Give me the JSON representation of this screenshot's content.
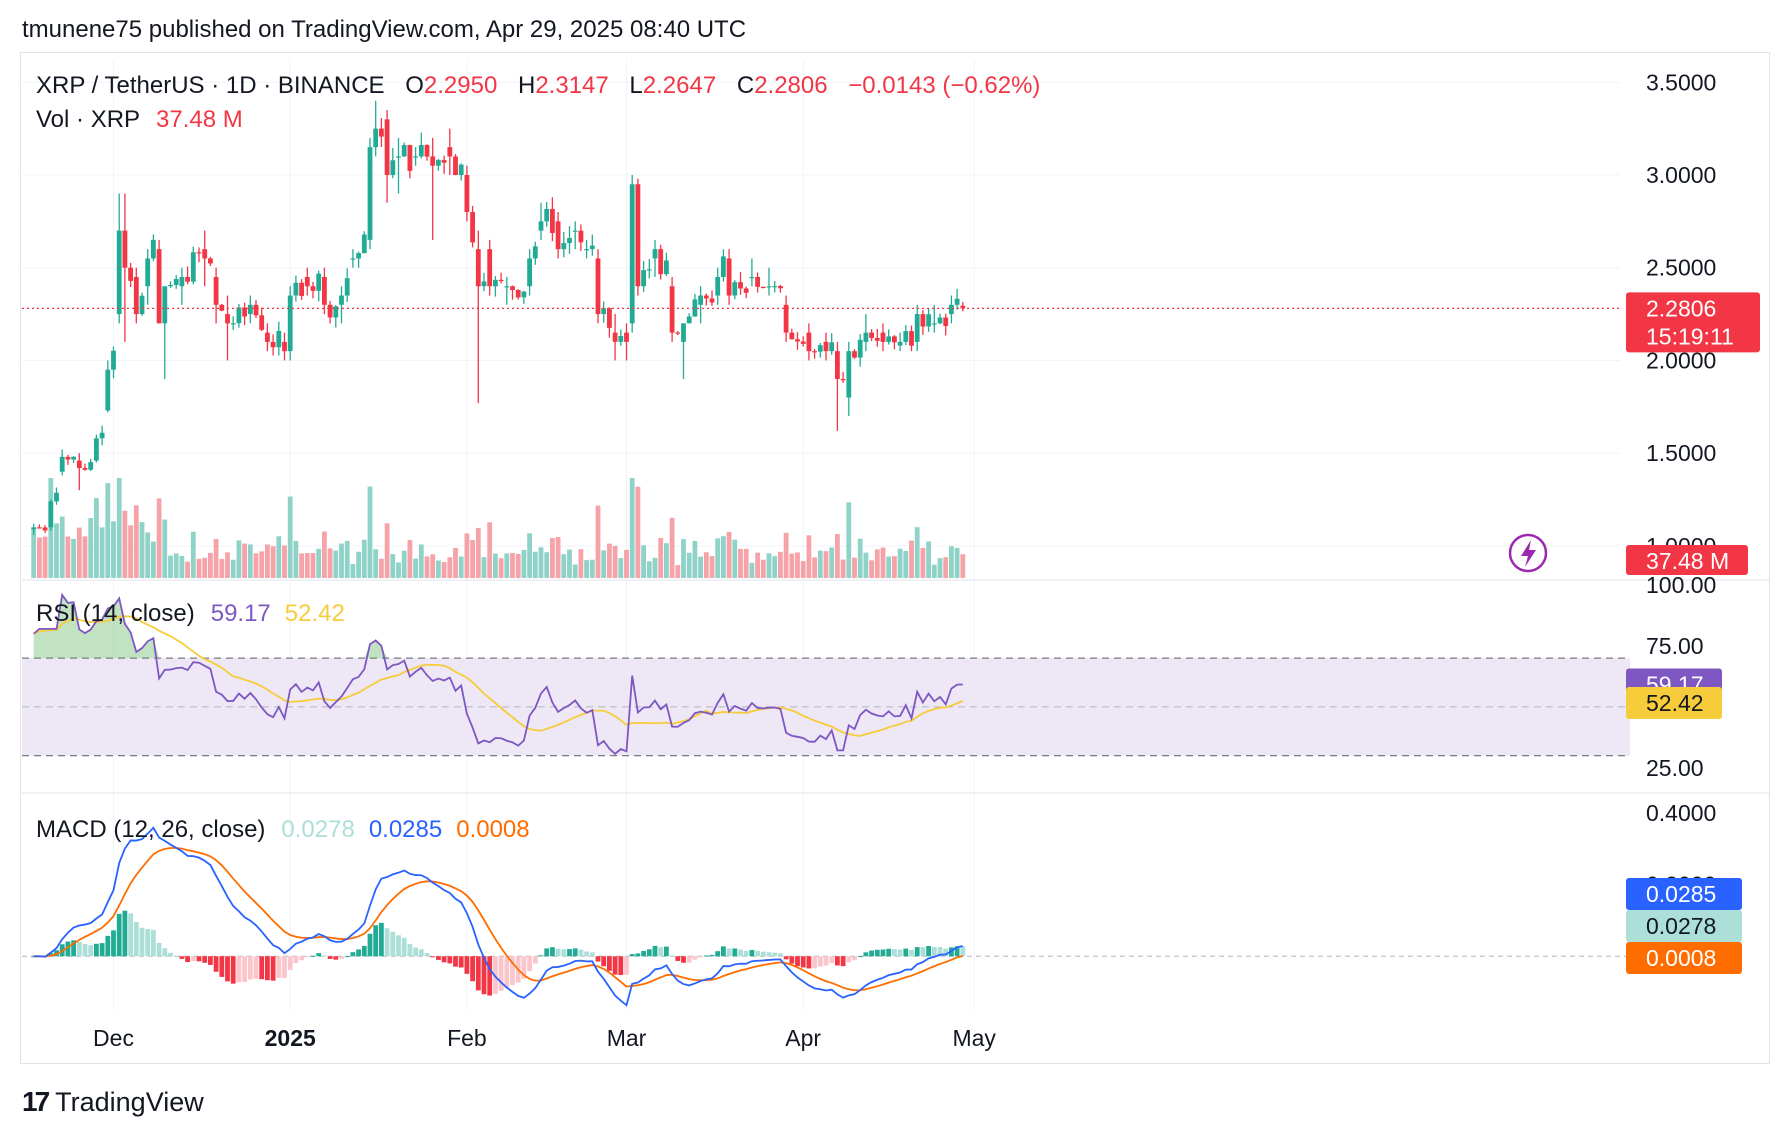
{
  "header": {
    "published_line": "tmunene75 published on TradingView.com, Apr 29, 2025 08:40 UTC"
  },
  "footer": {
    "brand": "TradingView",
    "logo_glyph": "17"
  },
  "colors": {
    "up": "#22ab94",
    "down": "#f23645",
    "up_vol": "#8fd2c8",
    "down_vol": "#f5a3a9",
    "rsi": "#7e57c2",
    "rsi_ma": "#f7cc3a",
    "macd": "#2962ff",
    "signal": "#ff6d00",
    "hist_up_strong": "#22ab94",
    "hist_up_weak": "#acdfd7",
    "hist_down_strong": "#f23645",
    "hist_down_weak": "#fbc6cb",
    "rsi_band": "#ede7f6"
  },
  "legend": {
    "main": {
      "symbol": "XRP / TetherUS · 1D · BINANCE",
      "o_label": "O",
      "o_value": "2.2950",
      "h_label": "H",
      "h_value": "2.3147",
      "l_label": "L",
      "l_value": "2.2647",
      "c_label": "C",
      "c_value": "2.2806",
      "change": "−0.0143 (−0.62%)"
    },
    "volume": {
      "label": "Vol · XRP",
      "value": "37.48 M"
    },
    "rsi": {
      "label": "RSI (14, close)",
      "value": "59.17",
      "ma_value": "52.42"
    },
    "macd": {
      "label": "MACD (12, 26, close)",
      "hist_value": "0.0278",
      "macd_value": "0.0285",
      "signal_value": "0.0008"
    }
  },
  "badges": {
    "price": "2.2806",
    "countdown": "15:19:11",
    "volume": "37.48 M",
    "rsi": "59.17",
    "rsi_ma": "52.42",
    "macd": "0.0285",
    "hist": "0.0278",
    "signal": "0.0008"
  },
  "chart_data": [
    {
      "type": "candlestick",
      "title": "XRP / TetherUS · 1D · BINANCE",
      "ylim": [
        0.85,
        3.6
      ],
      "y_ticks": [
        "3.5000",
        "3.0000",
        "2.5000",
        "2.0000",
        "1.5000",
        "1.0000"
      ],
      "y_tick_values": [
        3.5,
        3.0,
        2.5,
        2.0,
        1.5,
        1.0
      ],
      "x_ticks": [
        "Dec",
        "2025",
        "Feb",
        "Mar",
        "Apr",
        "May"
      ],
      "last_price": 2.2806,
      "ohlc_keypoints": [
        [
          "2024-11-17",
          1.09,
          1.12,
          1.06,
          1.1
        ],
        [
          "2024-11-20",
          1.1,
          1.25,
          1.08,
          1.24
        ],
        [
          "2024-11-22",
          1.4,
          1.52,
          1.38,
          1.48
        ],
        [
          "2024-11-25",
          1.46,
          1.5,
          1.3,
          1.42
        ],
        [
          "2024-11-28",
          1.46,
          1.6,
          1.45,
          1.58
        ],
        [
          "2024-11-30",
          1.73,
          2.0,
          1.72,
          1.95
        ],
        [
          "2024-12-02",
          2.25,
          2.9,
          2.2,
          2.7
        ],
        [
          "2024-12-03",
          2.7,
          2.9,
          2.1,
          2.5
        ],
        [
          "2024-12-05",
          2.45,
          2.5,
          2.2,
          2.25
        ],
        [
          "2024-12-07",
          2.4,
          2.6,
          2.3,
          2.55
        ],
        [
          "2024-12-09",
          2.6,
          2.65,
          2.2,
          2.2
        ],
        [
          "2024-12-10",
          2.2,
          2.4,
          1.9,
          2.4
        ],
        [
          "2024-12-13",
          2.4,
          2.5,
          2.3,
          2.45
        ],
        [
          "2024-12-17",
          2.6,
          2.7,
          2.4,
          2.55
        ],
        [
          "2024-12-19",
          2.45,
          2.5,
          2.2,
          2.3
        ],
        [
          "2024-12-21",
          2.25,
          2.35,
          2.0,
          2.2
        ],
        [
          "2024-12-25",
          2.25,
          2.35,
          2.2,
          2.3
        ],
        [
          "2024-12-28",
          2.15,
          2.2,
          2.05,
          2.1
        ],
        [
          "2024-12-31",
          2.1,
          2.15,
          2.0,
          2.05
        ],
        [
          "2025-01-01",
          2.05,
          2.4,
          2.0,
          2.35
        ],
        [
          "2025-01-04",
          2.45,
          2.5,
          2.35,
          2.4
        ],
        [
          "2025-01-07",
          2.45,
          2.5,
          2.25,
          2.3
        ],
        [
          "2025-01-10",
          2.3,
          2.4,
          2.2,
          2.35
        ],
        [
          "2025-01-12",
          2.55,
          2.6,
          2.5,
          2.55
        ],
        [
          "2025-01-15",
          2.65,
          3.2,
          2.6,
          3.15
        ],
        [
          "2025-01-16",
          3.15,
          3.4,
          3.1,
          3.25
        ],
        [
          "2025-01-18",
          3.3,
          3.35,
          2.85,
          3.0
        ],
        [
          "2025-01-20",
          3.1,
          3.2,
          2.9,
          3.1
        ],
        [
          "2025-01-23",
          3.1,
          3.15,
          3.05,
          3.1
        ],
        [
          "2025-01-26",
          3.1,
          3.2,
          2.65,
          3.05
        ],
        [
          "2025-01-29",
          3.15,
          3.25,
          3.0,
          3.1
        ],
        [
          "2025-02-01",
          3.0,
          3.05,
          2.75,
          2.8
        ],
        [
          "2025-02-03",
          2.6,
          2.7,
          1.77,
          2.4
        ],
        [
          "2025-02-05",
          2.6,
          2.65,
          2.35,
          2.4
        ],
        [
          "2025-02-08",
          2.4,
          2.45,
          2.3,
          2.4
        ],
        [
          "2025-02-12",
          2.4,
          2.6,
          2.35,
          2.55
        ],
        [
          "2025-02-14",
          2.7,
          2.85,
          2.65,
          2.75
        ],
        [
          "2025-02-17",
          2.75,
          2.8,
          2.55,
          2.6
        ],
        [
          "2025-02-20",
          2.7,
          2.75,
          2.6,
          2.7
        ],
        [
          "2025-02-22",
          2.6,
          2.65,
          2.55,
          2.6
        ],
        [
          "2025-02-24",
          2.55,
          2.6,
          2.2,
          2.25
        ],
        [
          "2025-02-27",
          2.15,
          2.25,
          2.0,
          2.1
        ],
        [
          "2025-03-01",
          2.15,
          2.2,
          2.0,
          2.1
        ],
        [
          "2025-03-02",
          2.2,
          3.0,
          2.15,
          2.95
        ],
        [
          "2025-03-03",
          2.95,
          2.98,
          2.35,
          2.4
        ],
        [
          "2025-03-06",
          2.55,
          2.65,
          2.45,
          2.6
        ],
        [
          "2025-03-09",
          2.4,
          2.45,
          2.1,
          2.15
        ],
        [
          "2025-03-11",
          2.1,
          2.2,
          1.9,
          2.2
        ],
        [
          "2025-03-14",
          2.3,
          2.4,
          2.2,
          2.35
        ],
        [
          "2025-03-17",
          2.35,
          2.5,
          2.3,
          2.45
        ],
        [
          "2025-03-19",
          2.55,
          2.6,
          2.3,
          2.35
        ],
        [
          "2025-03-23",
          2.45,
          2.55,
          2.4,
          2.45
        ],
        [
          "2025-03-26",
          2.4,
          2.5,
          2.35,
          2.4
        ],
        [
          "2025-03-29",
          2.3,
          2.35,
          2.1,
          2.15
        ],
        [
          "2025-04-02",
          2.15,
          2.2,
          2.0,
          2.05
        ],
        [
          "2025-04-05",
          2.1,
          2.15,
          2.0,
          2.05
        ],
        [
          "2025-04-07",
          2.05,
          2.1,
          1.62,
          1.9
        ],
        [
          "2025-04-09",
          1.8,
          2.1,
          1.7,
          2.05
        ],
        [
          "2025-04-12",
          2.1,
          2.25,
          2.05,
          2.15
        ],
        [
          "2025-04-15",
          2.15,
          2.2,
          2.05,
          2.1
        ],
        [
          "2025-04-18",
          2.08,
          2.15,
          2.05,
          2.1
        ],
        [
          "2025-04-21",
          2.1,
          2.3,
          2.05,
          2.25
        ],
        [
          "2025-04-24",
          2.2,
          2.3,
          2.15,
          2.2
        ],
        [
          "2025-04-27",
          2.25,
          2.35,
          2.2,
          2.3
        ],
        [
          "2025-04-29",
          2.295,
          2.3147,
          2.2647,
          2.2806
        ]
      ]
    },
    {
      "type": "bar",
      "title": "Vol · XRP",
      "last_value_M": 37.48
    },
    {
      "type": "line",
      "title": "RSI (14, close)",
      "ylim": [
        20,
        100
      ],
      "y_ticks": [
        "100.00",
        "75.00",
        "50.00",
        "25.00"
      ],
      "y_tick_values": [
        100,
        75,
        50,
        25
      ],
      "bands": [
        70,
        30
      ],
      "series": [
        {
          "name": "RSI",
          "last": 59.17
        },
        {
          "name": "RSI MA",
          "last": 52.42
        }
      ]
    },
    {
      "type": "line",
      "title": "MACD (12, 26, close)",
      "ylim": [
        -0.15,
        0.45
      ],
      "y_ticks": [
        "0.4000",
        "0.2000"
      ],
      "y_tick_values": [
        0.4,
        0.2
      ],
      "series": [
        {
          "name": "Histogram",
          "last": 0.0278
        },
        {
          "name": "MACD",
          "last": 0.0285
        },
        {
          "name": "Signal",
          "last": 0.0008
        }
      ]
    }
  ]
}
